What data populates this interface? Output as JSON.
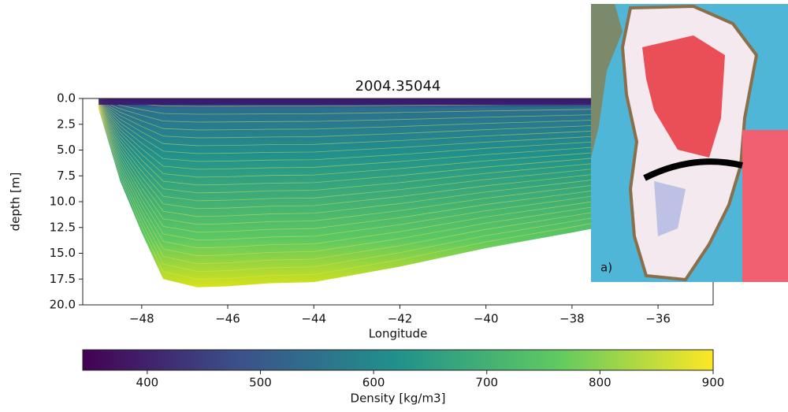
{
  "chart_data": {
    "type": "section",
    "title": "2004.35044",
    "xlabel": "Longitude",
    "ylabel": "depth [m]",
    "x": [
      -49,
      -48.5,
      -48,
      -47.5,
      -46.7,
      -46,
      -45,
      -44,
      -42,
      -40,
      -38,
      -36.5
    ],
    "values": [
      1,
      8,
      13,
      17.5,
      18.3,
      18.2,
      17.9,
      17.8,
      16.3,
      14.5,
      13,
      11.8
    ],
    "xlim": [
      -49.37,
      -34.72
    ],
    "xticks": [
      {
        "value": -48,
        "label": "−48"
      },
      {
        "value": -46,
        "label": "−46"
      },
      {
        "value": -44,
        "label": "−44"
      },
      {
        "value": -42,
        "label": "−42"
      },
      {
        "value": -40,
        "label": "−40"
      },
      {
        "value": -38,
        "label": "−38"
      },
      {
        "value": -36,
        "label": "−36"
      }
    ],
    "ylim": [
      0,
      20
    ],
    "y_inverted": true,
    "yticks": [
      {
        "value": 0,
        "label": "0.0"
      },
      2.5,
      {
        "value": 5,
        "label": "5.0"
      },
      7.5,
      {
        "value": 10,
        "label": "10.0"
      },
      12.5,
      {
        "value": 15,
        "label": "15.0"
      },
      17.5,
      {
        "value": 20,
        "label": "20.0"
      }
    ],
    "colorbar": {
      "label": "Density [kg/m3]",
      "lim": [
        343,
        900
      ],
      "ticks": [
        400,
        500,
        600,
        700,
        800,
        900
      ]
    }
  },
  "inset": {
    "label": "a)"
  }
}
